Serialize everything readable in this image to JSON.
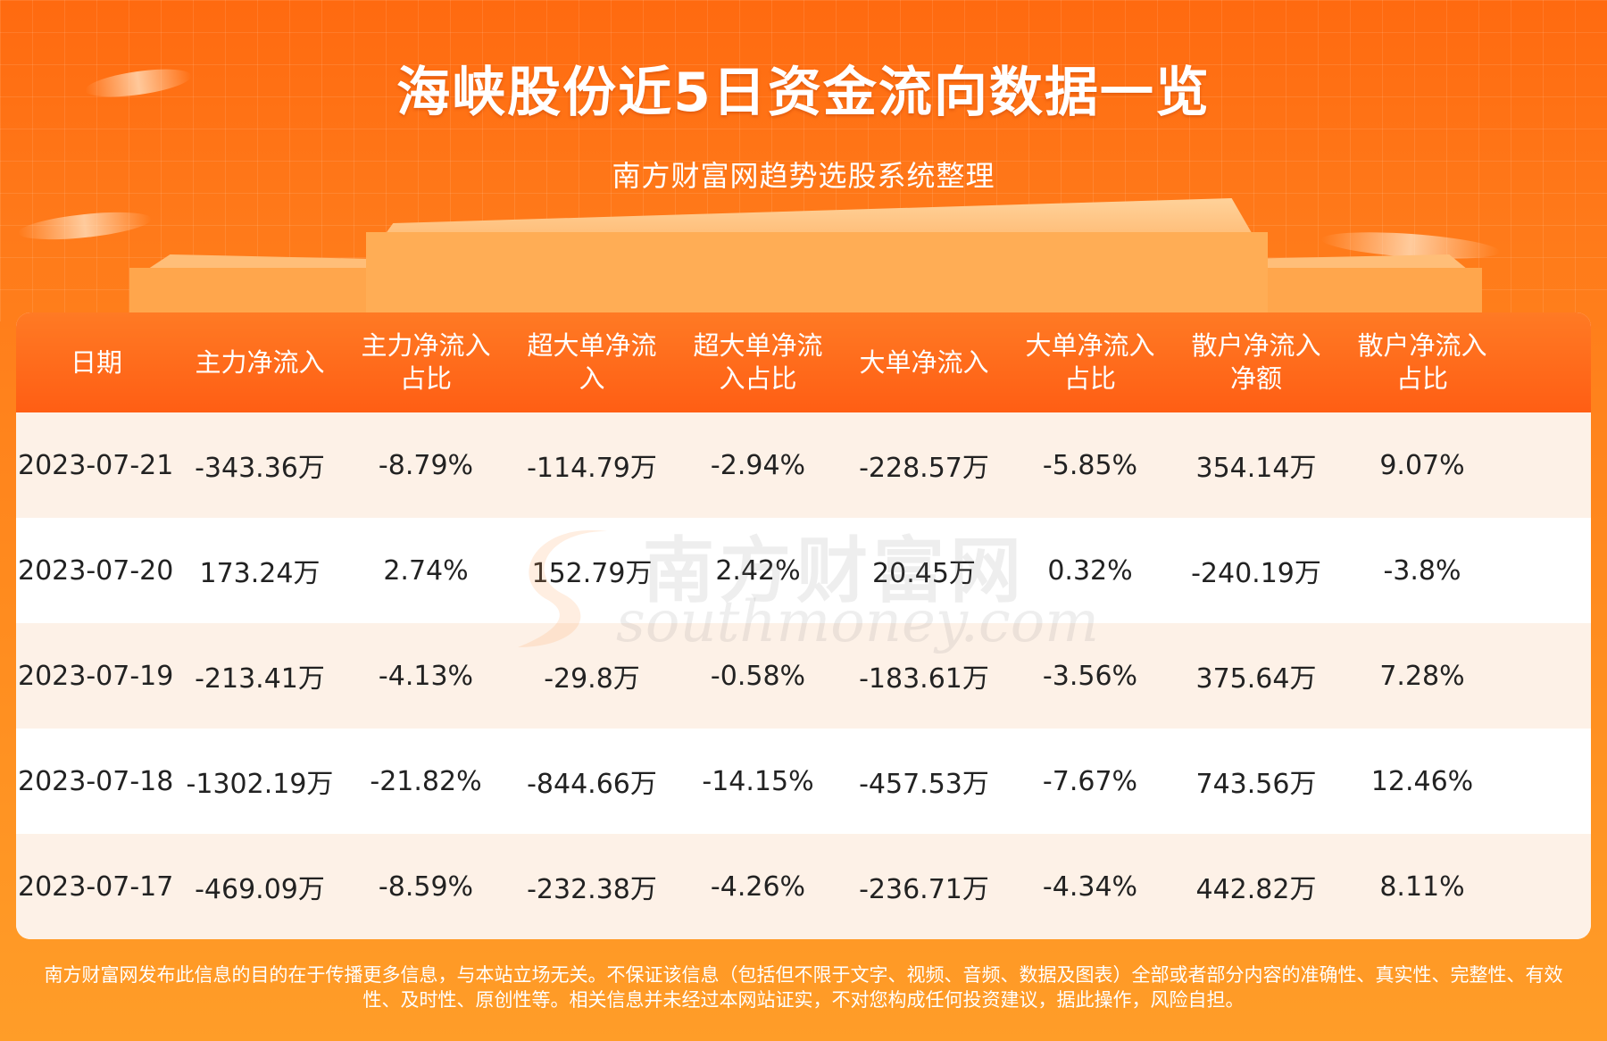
{
  "header": {
    "title": "海峡股份近5日资金流向数据一览",
    "subtitle": "南方财富网趋势选股系统整理"
  },
  "watermark": {
    "logo_text": "南方财富网",
    "url_text": "southmoney.com"
  },
  "table": {
    "columns": [
      "日期",
      "主力净流入",
      "主力净流入\n占比",
      "超大单净流\n入",
      "超大单净流\n入占比",
      "大单净流入",
      "大单净流入\n占比",
      "散户净流入\n净额",
      "散户净流入\n占比"
    ]
  },
  "chart_data": {
    "type": "table",
    "title": "海峡股份近5日资金流向数据一览",
    "columns": [
      "日期",
      "主力净流入",
      "主力净流入占比",
      "超大单净流入",
      "超大单净流入占比",
      "大单净流入",
      "大单净流入占比",
      "散户净流入净额",
      "散户净流入占比"
    ],
    "rows": [
      [
        "2023-07-21",
        "-343.36万",
        "-8.79%",
        "-114.79万",
        "-2.94%",
        "-228.57万",
        "-5.85%",
        "354.14万",
        "9.07%"
      ],
      [
        "2023-07-20",
        "173.24万",
        "2.74%",
        "152.79万",
        "2.42%",
        "20.45万",
        "0.32%",
        "-240.19万",
        "-3.8%"
      ],
      [
        "2023-07-19",
        "-213.41万",
        "-4.13%",
        "-29.8万",
        "-0.58%",
        "-183.61万",
        "-3.56%",
        "375.64万",
        "7.28%"
      ],
      [
        "2023-07-18",
        "-1302.19万",
        "-21.82%",
        "-844.66万",
        "-14.15%",
        "-457.53万",
        "-7.67%",
        "743.56万",
        "12.46%"
      ],
      [
        "2023-07-17",
        "-469.09万",
        "-8.59%",
        "-232.38万",
        "-4.26%",
        "-236.71万",
        "-4.34%",
        "442.82万",
        "8.11%"
      ]
    ]
  },
  "footer": {
    "disclaimer_line1": "南方财富网发布此信息的目的在于传播更多信息，与本站立场无关。不保证该信息（包括但不限于文字、视频、音频、数据及图表）全部或者部分内容的准确性、真实性、完整性、有效",
    "disclaimer_line2": "性、及时性、原创性等。相关信息并未经过本网站证实，不对您构成任何投资建议，据此操作，风险自担。"
  },
  "colors": {
    "background_top": "#ff6a10",
    "background_bottom": "#ff9d28",
    "header_row": "#ff6a1c",
    "row_alt": "#fdf1e7",
    "text": "#222222"
  }
}
